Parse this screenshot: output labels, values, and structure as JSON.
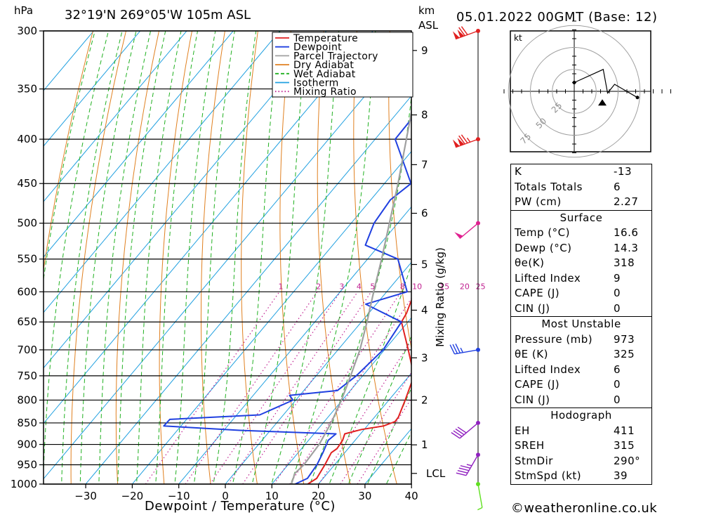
{
  "header": {
    "location": "32°19'N  269°05'W  105m  ASL",
    "datetime": "05.01.2022  00GMT  (Base: 12)",
    "pressure_unit": "hPa",
    "height_unit_km": "km",
    "height_unit_asl": "ASL"
  },
  "footer": {
    "xlabel": "Dewpoint / Temperature (°C)",
    "credit": "©weatheronline.co.uk"
  },
  "legend": {
    "items": [
      {
        "label": "Temperature",
        "color": "#e02020",
        "style": "solid"
      },
      {
        "label": "Dewpoint",
        "color": "#2040e0",
        "style": "solid"
      },
      {
        "label": "Parcel Trajectory",
        "color": "#a0a0a0",
        "style": "solid"
      },
      {
        "label": "Dry Adiabat",
        "color": "#e08020",
        "style": "solid"
      },
      {
        "label": "Wet Adiabat",
        "color": "#20b020",
        "style": "dashed"
      },
      {
        "label": "Isotherm",
        "color": "#20a0e0",
        "style": "solid"
      },
      {
        "label": "Mixing Ratio",
        "color": "#c02090",
        "style": "dotted"
      }
    ]
  },
  "chart_data": {
    "type": "line",
    "xlabel": "Dewpoint / Temperature (°C)",
    "ylabel": "hPa",
    "pressure_levels": [
      300,
      350,
      400,
      450,
      500,
      550,
      600,
      650,
      700,
      750,
      800,
      850,
      900,
      950,
      1000
    ],
    "x_ticks": [
      -30,
      -20,
      -10,
      0,
      10,
      20,
      30,
      40
    ],
    "height_ticks_km": [
      {
        "label": "9",
        "p": 316
      },
      {
        "label": "8",
        "p": 375
      },
      {
        "label": "7",
        "p": 428
      },
      {
        "label": "6",
        "p": 487
      },
      {
        "label": "5",
        "p": 558
      },
      {
        "label": "4",
        "p": 630
      },
      {
        "label": "3",
        "p": 715
      },
      {
        "label": "2",
        "p": 800
      },
      {
        "label": "1",
        "p": 901
      },
      {
        "label": "LCL",
        "p": 972
      }
    ],
    "mixing_ratio_axis": {
      "label": "Mixing Ratio (g/kg)",
      "values": [
        "1",
        "2",
        "3",
        "4",
        "5",
        "8",
        "10",
        "15",
        "20",
        "25"
      ]
    },
    "series": [
      {
        "name": "Temperature",
        "color": "#e02020",
        "points": [
          [
            1000,
            17.7
          ],
          [
            985,
            18.6
          ],
          [
            950,
            17.9
          ],
          [
            920,
            17.1
          ],
          [
            910,
            17.6
          ],
          [
            890,
            17.3
          ],
          [
            875,
            16.6
          ],
          [
            865,
            19.4
          ],
          [
            857,
            23.5
          ],
          [
            847,
            25.2
          ],
          [
            837,
            25.1
          ],
          [
            800,
            23.5
          ],
          [
            750,
            21.0
          ],
          [
            700,
            15.1
          ],
          [
            650,
            8.6
          ],
          [
            635,
            8.1
          ],
          [
            600,
            6.0
          ],
          [
            570,
            7.7
          ],
          [
            530,
            7.4
          ],
          [
            500,
            5.4
          ],
          [
            470,
            4.9
          ],
          [
            450,
            5.8
          ],
          [
            400,
            2.9
          ],
          [
            350,
            0.4
          ],
          [
            320,
            -0.8
          ],
          [
            300,
            -0.9
          ]
        ]
      },
      {
        "name": "Dewpoint",
        "color": "#2040e0",
        "points": [
          [
            1000,
            15.0
          ],
          [
            985,
            16.6
          ],
          [
            950,
            16.2
          ],
          [
            920,
            15.3
          ],
          [
            890,
            14.2
          ],
          [
            875,
            14.7
          ],
          [
            867,
            -6.6
          ],
          [
            857,
            -23.7
          ],
          [
            842,
            -23.6
          ],
          [
            832,
            -5.1
          ],
          [
            800,
            -0.6
          ],
          [
            790,
            -2.2
          ],
          [
            780,
            7.2
          ],
          [
            750,
            8.6
          ],
          [
            700,
            9.7
          ],
          [
            650,
            8.6
          ],
          [
            620,
            -2.3
          ],
          [
            600,
            4.4
          ],
          [
            550,
            -3.5
          ],
          [
            530,
            -13.0
          ],
          [
            500,
            -15.1
          ],
          [
            470,
            -15.8
          ],
          [
            450,
            -14.3
          ],
          [
            400,
            -25.7
          ],
          [
            370,
            -25.9
          ],
          [
            350,
            -26.5
          ],
          [
            340,
            -29.0
          ],
          [
            330,
            -31.3
          ],
          [
            320,
            -33.1
          ],
          [
            310,
            -27.0
          ],
          [
            300,
            -30.0
          ]
        ]
      },
      {
        "name": "Parcel Trajectory",
        "color": "#a0a0a0",
        "points": [
          [
            1000,
            14.2
          ],
          [
            972,
            13.0
          ],
          [
            950,
            13.4
          ],
          [
            900,
            13.0
          ],
          [
            850,
            11.7
          ],
          [
            800,
            9.8
          ],
          [
            750,
            7.4
          ],
          [
            700,
            4.7
          ],
          [
            650,
            1.2
          ],
          [
            600,
            -2.8
          ],
          [
            550,
            -7.0
          ],
          [
            500,
            -11.8
          ],
          [
            450,
            -17.1
          ],
          [
            400,
            -23.3
          ],
          [
            350,
            -30.3
          ],
          [
            300,
            -38.3
          ]
        ]
      }
    ],
    "wind_barbs": [
      {
        "p": 300,
        "dir": 250,
        "speed": 120,
        "color": "#e02020"
      },
      {
        "p": 400,
        "dir": 250,
        "speed": 125,
        "color": "#e02020"
      },
      {
        "p": 500,
        "dir": 230,
        "speed": 50,
        "color": "#e02090"
      },
      {
        "p": 700,
        "dir": 260,
        "speed": 35,
        "color": "#2040e0"
      },
      {
        "p": 850,
        "dir": 230,
        "speed": 40,
        "color": "#9020c0"
      },
      {
        "p": 925,
        "dir": 210,
        "speed": 45,
        "color": "#9020c0"
      },
      {
        "p": 1000,
        "dir": 170,
        "speed": 5,
        "color": "#60e020"
      }
    ],
    "hodograph": {
      "unit": "kt",
      "rings": [
        "25",
        "50",
        "75"
      ],
      "points": [
        [
          0,
          10
        ],
        [
          33,
          25
        ],
        [
          38,
          -2
        ],
        [
          46,
          8
        ],
        [
          72,
          -7
        ]
      ],
      "storm_motion": [
        32,
        -13
      ]
    }
  },
  "indices": {
    "general": [
      {
        "label": "K",
        "value": "-13"
      },
      {
        "label": "Totals Totals",
        "value": "6"
      },
      {
        "label": "PW (cm)",
        "value": "2.27"
      }
    ],
    "surface": {
      "title": "Surface",
      "rows": [
        {
          "label": "Temp (°C)",
          "value": "16.6"
        },
        {
          "label": "Dewp (°C)",
          "value": "14.3"
        },
        {
          "label": "θe(K)",
          "value": "318"
        },
        {
          "label": "Lifted Index",
          "value": "9"
        },
        {
          "label": "CAPE (J)",
          "value": "0"
        },
        {
          "label": "CIN (J)",
          "value": "0"
        }
      ]
    },
    "most_unstable": {
      "title": "Most Unstable",
      "rows": [
        {
          "label": "Pressure (mb)",
          "value": "973"
        },
        {
          "label": "θE (K)",
          "value": "325"
        },
        {
          "label": "Lifted Index",
          "value": "6"
        },
        {
          "label": "CAPE (J)",
          "value": "0"
        },
        {
          "label": "CIN (J)",
          "value": "0"
        }
      ]
    },
    "hodograph": {
      "title": "Hodograph",
      "rows": [
        {
          "label": "EH",
          "value": "411"
        },
        {
          "label": "SREH",
          "value": "315"
        },
        {
          "label": "StmDir",
          "value": "290°"
        },
        {
          "label": "StmSpd (kt)",
          "value": "39"
        }
      ]
    }
  }
}
